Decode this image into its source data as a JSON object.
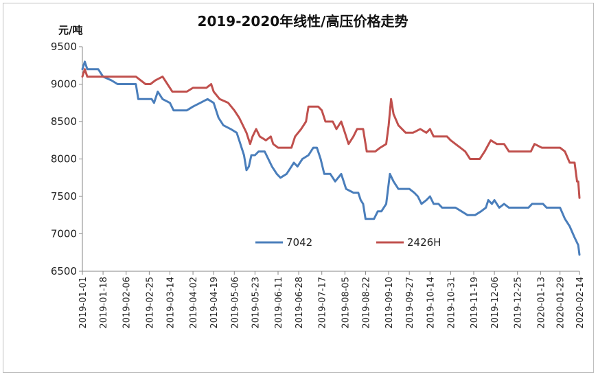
{
  "chart_data": {
    "type": "line",
    "title": "2019-2020年线性/高压价格走势",
    "ylabel": "元/吨",
    "xlabel": "",
    "ylim": [
      6500,
      9500
    ],
    "yticks": [
      6500,
      7000,
      7500,
      8000,
      8500,
      9000,
      9500
    ],
    "grid": false,
    "legend_position": "bottom-center",
    "x_tick_labels": [
      "2019-01-01",
      "2019-01-18",
      "2019-02-06",
      "2019-02-25",
      "2019-03-14",
      "2019-04-02",
      "2019-04-19",
      "2019-05-06",
      "2019-05-23",
      "2019-06-11",
      "2019-06-28",
      "2019-07-17",
      "2019-08-05",
      "2019-08-22",
      "2019-09-10",
      "2019-09-27",
      "2019-10-14",
      "2019-10-31",
      "2019-11-19",
      "2019-12-06",
      "2019-12-25",
      "2020-01-13",
      "2020-01-29",
      "2020-02-14"
    ],
    "series": [
      {
        "name": "7042",
        "color": "#4a7ebb",
        "points": [
          [
            "2019-01-01",
            9200
          ],
          [
            "2019-01-03",
            9300
          ],
          [
            "2019-01-05",
            9200
          ],
          [
            "2019-01-14",
            9200
          ],
          [
            "2019-01-16",
            9150
          ],
          [
            "2019-01-18",
            9100
          ],
          [
            "2019-01-25",
            9050
          ],
          [
            "2019-01-30",
            9000
          ],
          [
            "2019-02-06",
            9000
          ],
          [
            "2019-02-14",
            9000
          ],
          [
            "2019-02-16",
            8800
          ],
          [
            "2019-02-27",
            8800
          ],
          [
            "2019-03-01",
            8750
          ],
          [
            "2019-03-04",
            8900
          ],
          [
            "2019-03-08",
            8800
          ],
          [
            "2019-03-14",
            8750
          ],
          [
            "2019-03-17",
            8650
          ],
          [
            "2019-03-28",
            8650
          ],
          [
            "2019-04-02",
            8700
          ],
          [
            "2019-04-08",
            8750
          ],
          [
            "2019-04-14",
            8800
          ],
          [
            "2019-04-19",
            8750
          ],
          [
            "2019-04-23",
            8550
          ],
          [
            "2019-04-27",
            8450
          ],
          [
            "2019-05-03",
            8400
          ],
          [
            "2019-05-08",
            8350
          ],
          [
            "2019-05-10",
            8250
          ],
          [
            "2019-05-14",
            8050
          ],
          [
            "2019-05-16",
            7850
          ],
          [
            "2019-05-18",
            7900
          ],
          [
            "2019-05-20",
            8050
          ],
          [
            "2019-05-23",
            8050
          ],
          [
            "2019-05-26",
            8100
          ],
          [
            "2019-05-31",
            8100
          ],
          [
            "2019-06-03",
            8000
          ],
          [
            "2019-06-06",
            7900
          ],
          [
            "2019-06-10",
            7800
          ],
          [
            "2019-06-13",
            7750
          ],
          [
            "2019-06-18",
            7800
          ],
          [
            "2019-06-22",
            7900
          ],
          [
            "2019-06-24",
            7950
          ],
          [
            "2019-06-27",
            7900
          ],
          [
            "2019-07-01",
            8000
          ],
          [
            "2019-07-06",
            8050
          ],
          [
            "2019-07-10",
            8150
          ],
          [
            "2019-07-13",
            8150
          ],
          [
            "2019-07-16",
            8000
          ],
          [
            "2019-07-19",
            7800
          ],
          [
            "2019-07-24",
            7800
          ],
          [
            "2019-07-28",
            7700
          ],
          [
            "2019-08-02",
            7800
          ],
          [
            "2019-08-06",
            7600
          ],
          [
            "2019-08-12",
            7550
          ],
          [
            "2019-08-16",
            7550
          ],
          [
            "2019-08-18",
            7450
          ],
          [
            "2019-08-20",
            7400
          ],
          [
            "2019-08-22",
            7200
          ],
          [
            "2019-08-29",
            7200
          ],
          [
            "2019-09-01",
            7300
          ],
          [
            "2019-09-04",
            7300
          ],
          [
            "2019-09-08",
            7400
          ],
          [
            "2019-09-11",
            7800
          ],
          [
            "2019-09-14",
            7700
          ],
          [
            "2019-09-18",
            7600
          ],
          [
            "2019-09-27",
            7600
          ],
          [
            "2019-10-01",
            7550
          ],
          [
            "2019-10-04",
            7500
          ],
          [
            "2019-10-07",
            7400
          ],
          [
            "2019-10-11",
            7450
          ],
          [
            "2019-10-14",
            7500
          ],
          [
            "2019-10-17",
            7400
          ],
          [
            "2019-10-21",
            7400
          ],
          [
            "2019-10-24",
            7350
          ],
          [
            "2019-11-04",
            7350
          ],
          [
            "2019-11-09",
            7300
          ],
          [
            "2019-11-14",
            7250
          ],
          [
            "2019-11-20",
            7250
          ],
          [
            "2019-11-25",
            7300
          ],
          [
            "2019-11-29",
            7350
          ],
          [
            "2019-12-01",
            7450
          ],
          [
            "2019-12-04",
            7400
          ],
          [
            "2019-12-06",
            7450
          ],
          [
            "2019-12-10",
            7350
          ],
          [
            "2019-12-14",
            7400
          ],
          [
            "2019-12-18",
            7350
          ],
          [
            "2019-12-25",
            7350
          ],
          [
            "2020-01-03",
            7350
          ],
          [
            "2020-01-06",
            7400
          ],
          [
            "2020-01-15",
            7400
          ],
          [
            "2020-01-18",
            7350
          ],
          [
            "2020-01-29",
            7350
          ],
          [
            "2020-02-02",
            7200
          ],
          [
            "2020-02-06",
            7100
          ],
          [
            "2020-02-10",
            6950
          ],
          [
            "2020-02-13",
            6850
          ],
          [
            "2020-02-14",
            6720
          ]
        ]
      },
      {
        "name": "2426H",
        "color": "#c0504d",
        "points": [
          [
            "2019-01-01",
            9100
          ],
          [
            "2019-01-03",
            9200
          ],
          [
            "2019-01-05",
            9100
          ],
          [
            "2019-01-18",
            9100
          ],
          [
            "2019-02-06",
            9100
          ],
          [
            "2019-02-14",
            9100
          ],
          [
            "2019-02-18",
            9050
          ],
          [
            "2019-02-22",
            9000
          ],
          [
            "2019-02-26",
            9000
          ],
          [
            "2019-03-02",
            9050
          ],
          [
            "2019-03-08",
            9100
          ],
          [
            "2019-03-12",
            9000
          ],
          [
            "2019-03-16",
            8900
          ],
          [
            "2019-03-28",
            8900
          ],
          [
            "2019-04-02",
            8950
          ],
          [
            "2019-04-13",
            8950
          ],
          [
            "2019-04-17",
            9000
          ],
          [
            "2019-04-19",
            8900
          ],
          [
            "2019-04-24",
            8800
          ],
          [
            "2019-05-01",
            8750
          ],
          [
            "2019-05-06",
            8650
          ],
          [
            "2019-05-10",
            8550
          ],
          [
            "2019-05-13",
            8450
          ],
          [
            "2019-05-16",
            8350
          ],
          [
            "2019-05-19",
            8200
          ],
          [
            "2019-05-21",
            8300
          ],
          [
            "2019-05-24",
            8400
          ],
          [
            "2019-05-27",
            8300
          ],
          [
            "2019-06-01",
            8250
          ],
          [
            "2019-06-05",
            8300
          ],
          [
            "2019-06-07",
            8200
          ],
          [
            "2019-06-11",
            8150
          ],
          [
            "2019-06-22",
            8150
          ],
          [
            "2019-06-25",
            8300
          ],
          [
            "2019-06-30",
            8400
          ],
          [
            "2019-07-04",
            8500
          ],
          [
            "2019-07-06",
            8700
          ],
          [
            "2019-07-14",
            8700
          ],
          [
            "2019-07-17",
            8650
          ],
          [
            "2019-07-20",
            8500
          ],
          [
            "2019-07-26",
            8500
          ],
          [
            "2019-07-29",
            8400
          ],
          [
            "2019-08-02",
            8500
          ],
          [
            "2019-08-05",
            8350
          ],
          [
            "2019-08-08",
            8200
          ],
          [
            "2019-08-12",
            8300
          ],
          [
            "2019-08-15",
            8400
          ],
          [
            "2019-08-20",
            8400
          ],
          [
            "2019-08-23",
            8100
          ],
          [
            "2019-08-30",
            8100
          ],
          [
            "2019-09-03",
            8150
          ],
          [
            "2019-09-08",
            8200
          ],
          [
            "2019-09-10",
            8450
          ],
          [
            "2019-09-12",
            8800
          ],
          [
            "2019-09-14",
            8600
          ],
          [
            "2019-09-18",
            8450
          ],
          [
            "2019-09-24",
            8350
          ],
          [
            "2019-09-30",
            8350
          ],
          [
            "2019-10-06",
            8400
          ],
          [
            "2019-10-11",
            8350
          ],
          [
            "2019-10-14",
            8400
          ],
          [
            "2019-10-17",
            8300
          ],
          [
            "2019-10-28",
            8300
          ],
          [
            "2019-10-31",
            8250
          ],
          [
            "2019-11-04",
            8200
          ],
          [
            "2019-11-08",
            8150
          ],
          [
            "2019-11-12",
            8100
          ],
          [
            "2019-11-16",
            8000
          ],
          [
            "2019-11-24",
            8000
          ],
          [
            "2019-11-28",
            8100
          ],
          [
            "2019-12-03",
            8250
          ],
          [
            "2019-12-08",
            8200
          ],
          [
            "2019-12-14",
            8200
          ],
          [
            "2019-12-18",
            8100
          ],
          [
            "2019-12-25",
            8100
          ],
          [
            "2020-01-05",
            8100
          ],
          [
            "2020-01-08",
            8200
          ],
          [
            "2020-01-14",
            8150
          ],
          [
            "2020-01-29",
            8150
          ],
          [
            "2020-02-02",
            8100
          ],
          [
            "2020-02-06",
            7950
          ],
          [
            "2020-02-10",
            7950
          ],
          [
            "2020-02-12",
            7700
          ],
          [
            "2020-02-13",
            7700
          ],
          [
            "2020-02-14",
            7480
          ]
        ]
      }
    ]
  }
}
